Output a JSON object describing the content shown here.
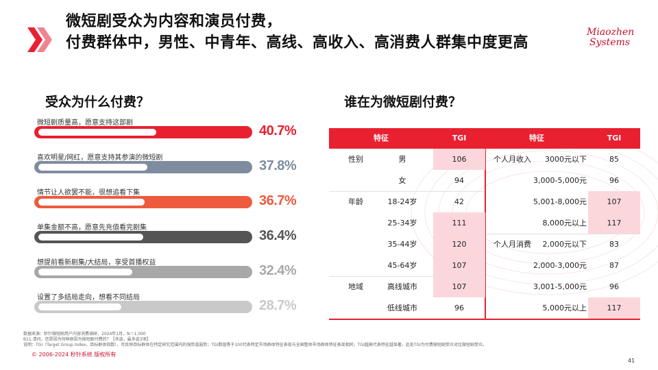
{
  "header": {
    "title_line1": "微短剧受众为内容和演员付费，",
    "title_line2": "付费群体中，男性、中青年、高线、高收入、高消费人群集中度更高",
    "logo_line1": "Miaozhen",
    "logo_line2": "Systems"
  },
  "left": {
    "title": "受众为什么付费？",
    "reasons": [
      {
        "label": "微短剧质量高，愿意支持这部剧",
        "value": "40.7%",
        "percent": 40.7,
        "color": "#e8202f"
      },
      {
        "label": "喜欢明星/网红，愿意支持其参演的微短剧",
        "value": "37.8%",
        "percent": 37.8,
        "color": "#7f8c9f"
      },
      {
        "label": "情节让人欲罢不能，很想追看下集",
        "value": "36.7%",
        "percent": 36.7,
        "color": "#ee5a3e"
      },
      {
        "label": "单集金额不高，愿意先充值看完剧集",
        "value": "36.4%",
        "percent": 36.4,
        "color": "#555555"
      },
      {
        "label": "想提前看新剧集/大结局，享受首播权益",
        "value": "32.4%",
        "percent": 32.4,
        "color": "#a8a8a8"
      },
      {
        "label": "设置了多结局走向，想看不同结局",
        "value": "28.7%",
        "percent": 28.7,
        "color": "#c9c9c9"
      }
    ]
  },
  "right": {
    "title": "谁在为微短剧付费？",
    "headers": {
      "feature1": "特征",
      "tgi1": "TGI",
      "feature2": "特征",
      "tgi2": "TGI"
    },
    "left_rows": [
      {
        "group": "性别",
        "item": "男",
        "tgi": "106",
        "highlight": true
      },
      {
        "group": "",
        "item": "女",
        "tgi": "94",
        "highlight": false
      },
      {
        "group": "年龄",
        "item": "18-24岁",
        "tgi": "42",
        "highlight": false
      },
      {
        "group": "",
        "item": "25-34岁",
        "tgi": "111",
        "highlight": true
      },
      {
        "group": "",
        "item": "35-44岁",
        "tgi": "120",
        "highlight": true
      },
      {
        "group": "",
        "item": "45-64岁",
        "tgi": "107",
        "highlight": true
      },
      {
        "group": "地域",
        "item": "高线城市",
        "tgi": "107",
        "highlight": true
      },
      {
        "group": "",
        "item": "低线城市",
        "tgi": "96",
        "highlight": false
      }
    ],
    "right_rows": [
      {
        "group": "个人月收入",
        "item": "3000元以下",
        "tgi": "85",
        "highlight": false
      },
      {
        "group": "",
        "item": "3,000-5,000元",
        "tgi": "96",
        "highlight": false
      },
      {
        "group": "",
        "item": "5,001-8,000元",
        "tgi": "107",
        "highlight": true
      },
      {
        "group": "",
        "item": "8,000元以上",
        "tgi": "117",
        "highlight": true
      },
      {
        "group": "个人月消费",
        "item": "2,000元以下",
        "tgi": "83",
        "highlight": false
      },
      {
        "group": "",
        "item": "2,000-3,000元",
        "tgi": "87",
        "highlight": false
      },
      {
        "group": "",
        "item": "3,001-5,000元",
        "tgi": "96",
        "highlight": false
      },
      {
        "group": "",
        "item": "5,000元以上",
        "tgi": "117",
        "highlight": true
      }
    ]
  },
  "footer": {
    "note1": "数据来源：秒针微短剧用户内容消费调研，2024年1月，N＝1,000",
    "note2": "B11.请问，您是因为何种原因为微短剧付费的？【多选，最多选3项】",
    "note3": "说明：TGI（Target Group Index，目标群体指数），可反映目标群体在特定研究范围内的强势或弱势；TGI数值等于100代表特定市场群体特征表现与全国整体市场群体特征表现相同，TGI越高代表特征越显著，此处TGI为付费微短剧受众对比微短剧受众。",
    "copyright": "© 2006-2024 秒针系统 版权所有",
    "page": "41"
  }
}
